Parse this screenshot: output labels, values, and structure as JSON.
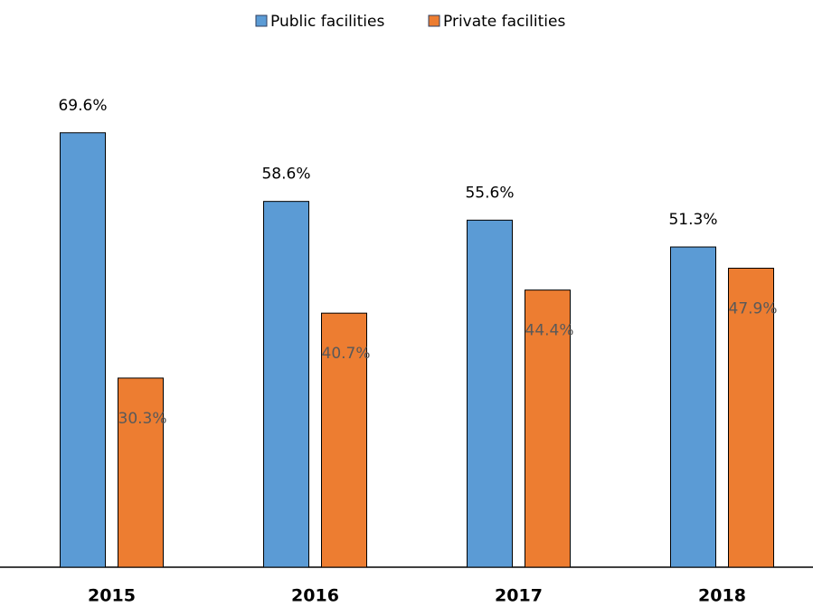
{
  "chart_data": {
    "type": "bar",
    "categories": [
      "2015",
      "2016",
      "2017",
      "2018"
    ],
    "series": [
      {
        "name": "Public facilities",
        "color": "#5b9bd5",
        "values": [
          69.6,
          58.6,
          55.6,
          51.3
        ],
        "value_labels": [
          "69.6%",
          "58.6%",
          "55.6%",
          "51.3%"
        ]
      },
      {
        "name": "Private facilities",
        "color": "#ed7d31",
        "values": [
          30.3,
          40.7,
          44.4,
          47.9
        ],
        "value_labels": [
          "30.3%",
          "40.7%",
          "44.4%",
          "47.9%"
        ]
      }
    ],
    "ylim": [
      0,
      80
    ],
    "legend": "top"
  }
}
